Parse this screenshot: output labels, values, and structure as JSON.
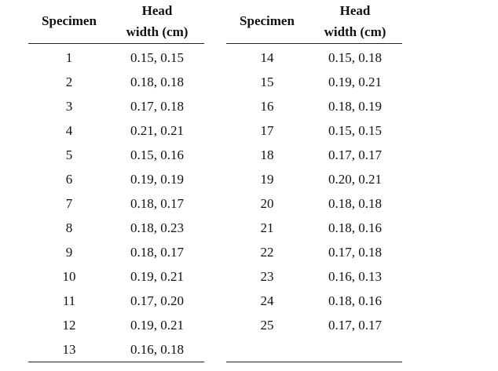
{
  "headers": {
    "specimen": "Specimen",
    "head_line1": "Head",
    "head_line2": "width (cm)"
  },
  "left_rows": [
    {
      "specimen": "1",
      "width": "0.15, 0.15"
    },
    {
      "specimen": "2",
      "width": "0.18, 0.18"
    },
    {
      "specimen": "3",
      "width": "0.17, 0.18"
    },
    {
      "specimen": "4",
      "width": "0.21, 0.21"
    },
    {
      "specimen": "5",
      "width": "0.15, 0.16"
    },
    {
      "specimen": "6",
      "width": "0.19, 0.19"
    },
    {
      "specimen": "7",
      "width": "0.18, 0.17"
    },
    {
      "specimen": "8",
      "width": "0.18, 0.23"
    },
    {
      "specimen": "9",
      "width": "0.18, 0.17"
    },
    {
      "specimen": "10",
      "width": "0.19, 0.21"
    },
    {
      "specimen": "11",
      "width": "0.17, 0.20"
    },
    {
      "specimen": "12",
      "width": "0.19, 0.21"
    },
    {
      "specimen": "13",
      "width": "0.16, 0.18"
    }
  ],
  "right_rows": [
    {
      "specimen": "14",
      "width": "0.15, 0.18"
    },
    {
      "specimen": "15",
      "width": "0.19, 0.21"
    },
    {
      "specimen": "16",
      "width": "0.18, 0.19"
    },
    {
      "specimen": "17",
      "width": "0.15, 0.15"
    },
    {
      "specimen": "18",
      "width": "0.17, 0.17"
    },
    {
      "specimen": "19",
      "width": "0.20, 0.21"
    },
    {
      "specimen": "20",
      "width": "0.18, 0.18"
    },
    {
      "specimen": "21",
      "width": "0.18, 0.16"
    },
    {
      "specimen": "22",
      "width": "0.17, 0.18"
    },
    {
      "specimen": "23",
      "width": "0.16, 0.13"
    },
    {
      "specimen": "24",
      "width": "0.18, 0.16"
    },
    {
      "specimen": "25",
      "width": "0.17, 0.17"
    }
  ]
}
